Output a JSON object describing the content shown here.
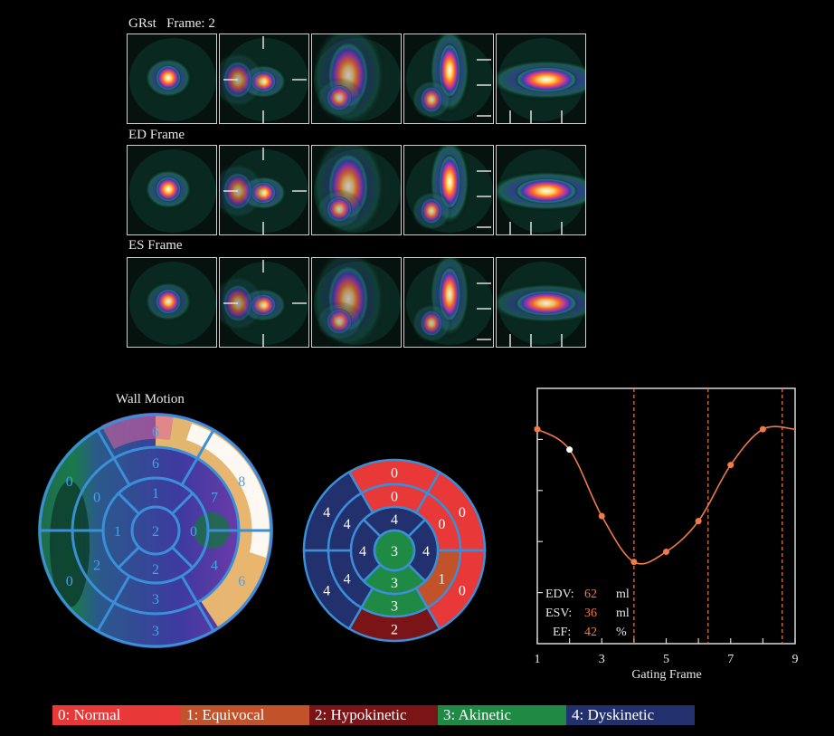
{
  "rows": [
    {
      "label": "GRst   Frame: 2"
    },
    {
      "label": "ED Frame"
    },
    {
      "label": "ES Frame"
    }
  ],
  "wall_motion": {
    "title": "Wall Motion",
    "outer": [
      "6",
      "8",
      "6",
      "3",
      "0",
      "0"
    ],
    "mid": [
      "6",
      "7",
      "4",
      "3",
      "2",
      "0"
    ],
    "apical": [
      "1",
      "0",
      "2",
      "1"
    ],
    "apex": "2"
  },
  "score_map": {
    "outer": [
      0,
      0,
      0,
      2,
      4,
      4
    ],
    "mid": [
      0,
      0,
      1,
      3,
      4,
      4
    ],
    "apical": [
      4,
      4,
      3,
      4
    ],
    "apex": 3
  },
  "colors": {
    "score_0": "#e83838",
    "score_1": "#c2522a",
    "score_2": "#7b1416",
    "score_3": "#1e8a44",
    "score_4": "#23306e",
    "ring_stroke": "#3a8fd8",
    "curve": "#f07a4a"
  },
  "legend": [
    {
      "label": "0: Normal",
      "color": "#e83838"
    },
    {
      "label": "1: Equivocal",
      "color": "#c2522a"
    },
    {
      "label": "2: Hypokinetic",
      "color": "#7b1416"
    },
    {
      "label": "3: Akinetic",
      "color": "#1e8a44"
    },
    {
      "label": "4: Dyskinetic",
      "color": "#23306e"
    }
  ],
  "volume_labels": {
    "edv_label": "EDV:",
    "edv_value": "62",
    "edv_unit": "ml",
    "esv_label": "ESV:",
    "esv_value": "36",
    "esv_unit": "ml",
    "ef_label": "EF:",
    "ef_value": "42",
    "ef_unit": "%"
  },
  "chart_data": {
    "type": "line",
    "xlabel": "Gating Frame",
    "ylabel": "",
    "xlim": [
      1,
      9
    ],
    "xticks": [
      "1",
      "3",
      "5",
      "7",
      "9"
    ],
    "x": [
      1,
      2,
      3,
      4,
      5,
      6,
      7,
      8
    ],
    "y": [
      62,
      58,
      45,
      36,
      38,
      44,
      55,
      62
    ],
    "highlight_point": {
      "x": 2,
      "y": 58
    },
    "markers_x": [
      4,
      6.3,
      8.6
    ],
    "ylim": [
      20,
      70
    ],
    "grid": false
  }
}
